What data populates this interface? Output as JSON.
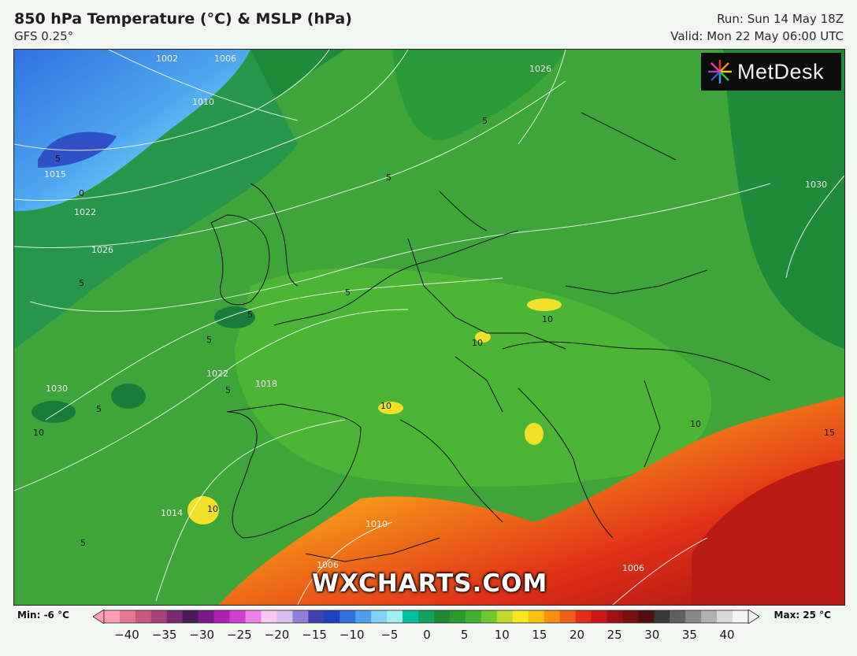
{
  "header": {
    "title": "850 hPa Temperature (°C) & MSLP (hPa)",
    "model": "GFS 0.25°",
    "run": "Run: Sun 14 May 18Z",
    "valid": "Valid: Mon 22 May 06:00 UTC"
  },
  "logo": {
    "text": "MetDesk"
  },
  "watermark": "WXCHARTS.COM",
  "isobar_labels": [
    "1002",
    "1006",
    "1010",
    "1015",
    "1022",
    "1026",
    "1030",
    "1026",
    "1030",
    "1022",
    "1018",
    "1014",
    "1010",
    "1006",
    "1006"
  ],
  "temp_labels": [
    "5",
    "0",
    "5",
    "5",
    "5",
    "5",
    "5",
    "5",
    "5",
    "5",
    "5",
    "10",
    "10",
    "10",
    "10",
    "10",
    "10",
    "15"
  ],
  "legend": {
    "min_label": "Min: -6 °C",
    "max_label": "Max: 25 °C",
    "ticks": [
      "−40",
      "−35",
      "−30",
      "−25",
      "−20",
      "−15",
      "−10",
      "−5",
      "0",
      "5",
      "10",
      "15",
      "20",
      "25",
      "30",
      "35",
      "40"
    ],
    "colors": [
      "#ff9fb4",
      "#e67896",
      "#c85a82",
      "#a8407a",
      "#7a2a6e",
      "#4a1a5a",
      "#7a1a8a",
      "#b020b0",
      "#d040d0",
      "#f080e8",
      "#f8c8f0",
      "#d8c0f0",
      "#9080d8",
      "#4040b0",
      "#2040c0",
      "#3070e0",
      "#50a0f0",
      "#80d0f8",
      "#a0f0f0",
      "#00c0a0",
      "#10a060",
      "#208a30",
      "#2a9a2a",
      "#40b030",
      "#70c830",
      "#c0d830",
      "#f8e820",
      "#f8c010",
      "#f89010",
      "#f06018",
      "#e03018",
      "#c81818",
      "#a01010",
      "#781010",
      "#501010",
      "#383838",
      "#606060",
      "#888888",
      "#b0b0b0",
      "#d8d8d8",
      "#f4f4f4"
    ]
  }
}
